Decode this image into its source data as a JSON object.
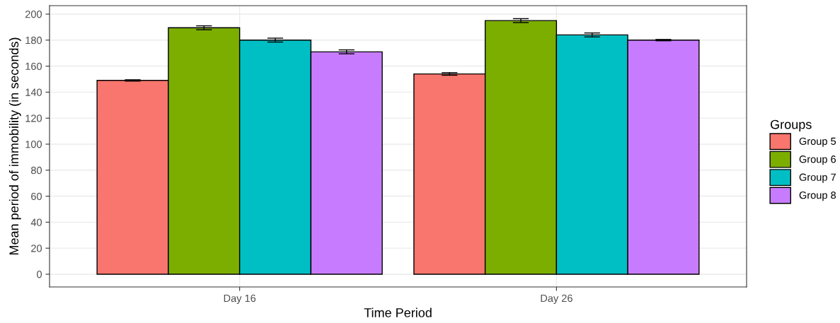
{
  "chart_data": {
    "type": "bar",
    "xlabel": "Time Period",
    "ylabel": "Mean period of immobility (in seconds)",
    "legend_title": "Groups",
    "categories": [
      "Day 16",
      "Day 26"
    ],
    "series": [
      {
        "name": "Group 5",
        "color": "#f8766d",
        "values": [
          149,
          154
        ],
        "errors": [
          0.5,
          1
        ]
      },
      {
        "name": "Group 6",
        "color": "#7cae00",
        "values": [
          189.5,
          195
        ],
        "errors": [
          1.5,
          1.5
        ]
      },
      {
        "name": "Group 7",
        "color": "#00bfc4",
        "values": [
          180,
          184
        ],
        "errors": [
          1.5,
          1.5
        ]
      },
      {
        "name": "Group 8",
        "color": "#c77cff",
        "values": [
          171,
          180
        ],
        "errors": [
          1.5,
          0.5
        ]
      }
    ],
    "ylim": [
      -9.8,
      206.5
    ],
    "yticks": [
      0,
      20,
      40,
      60,
      80,
      100,
      120,
      140,
      160,
      180,
      200
    ],
    "grid": true,
    "legend": "right"
  }
}
